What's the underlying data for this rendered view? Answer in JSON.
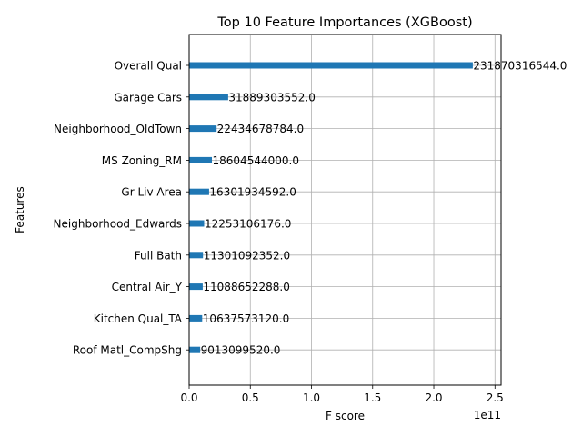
{
  "chart_data": {
    "type": "bar",
    "orientation": "horizontal",
    "title": "Top 10 Feature Importances (XGBoost)",
    "xlabel": "F score",
    "ylabel": "Features",
    "x_offset_label": "1e11",
    "xlim": [
      0,
      2.55
    ],
    "x_ticks": [
      0.0,
      0.5,
      1.0,
      1.5,
      2.0,
      2.5
    ],
    "x_tick_labels": [
      "0.0",
      "0.5",
      "1.0",
      "1.5",
      "2.0",
      "2.5"
    ],
    "grid": true,
    "bar_color": "#1f77b4",
    "categories": [
      "Overall Qual",
      "Garage Cars",
      "Neighborhood_OldTown",
      "MS Zoning_RM",
      "Gr Liv Area",
      "Neighborhood_Edwards",
      "Full Bath",
      "Central Air_Y",
      "Kitchen Qual_TA",
      "Roof Matl_CompShg"
    ],
    "values": [
      231870316544.0,
      31889303552.0,
      22434678784.0,
      18604544000.0,
      16301934592.0,
      12253106176.0,
      11301092352.0,
      11088652288.0,
      10637573120.0,
      9013099520.0
    ],
    "value_labels": [
      "231870316544.0",
      "31889303552.0",
      "22434678784.0",
      "18604544000.0",
      "16301934592.0",
      "12253106176.0",
      "11301092352.0",
      "11088652288.0",
      "10637573120.0",
      "9013099520.0"
    ]
  }
}
